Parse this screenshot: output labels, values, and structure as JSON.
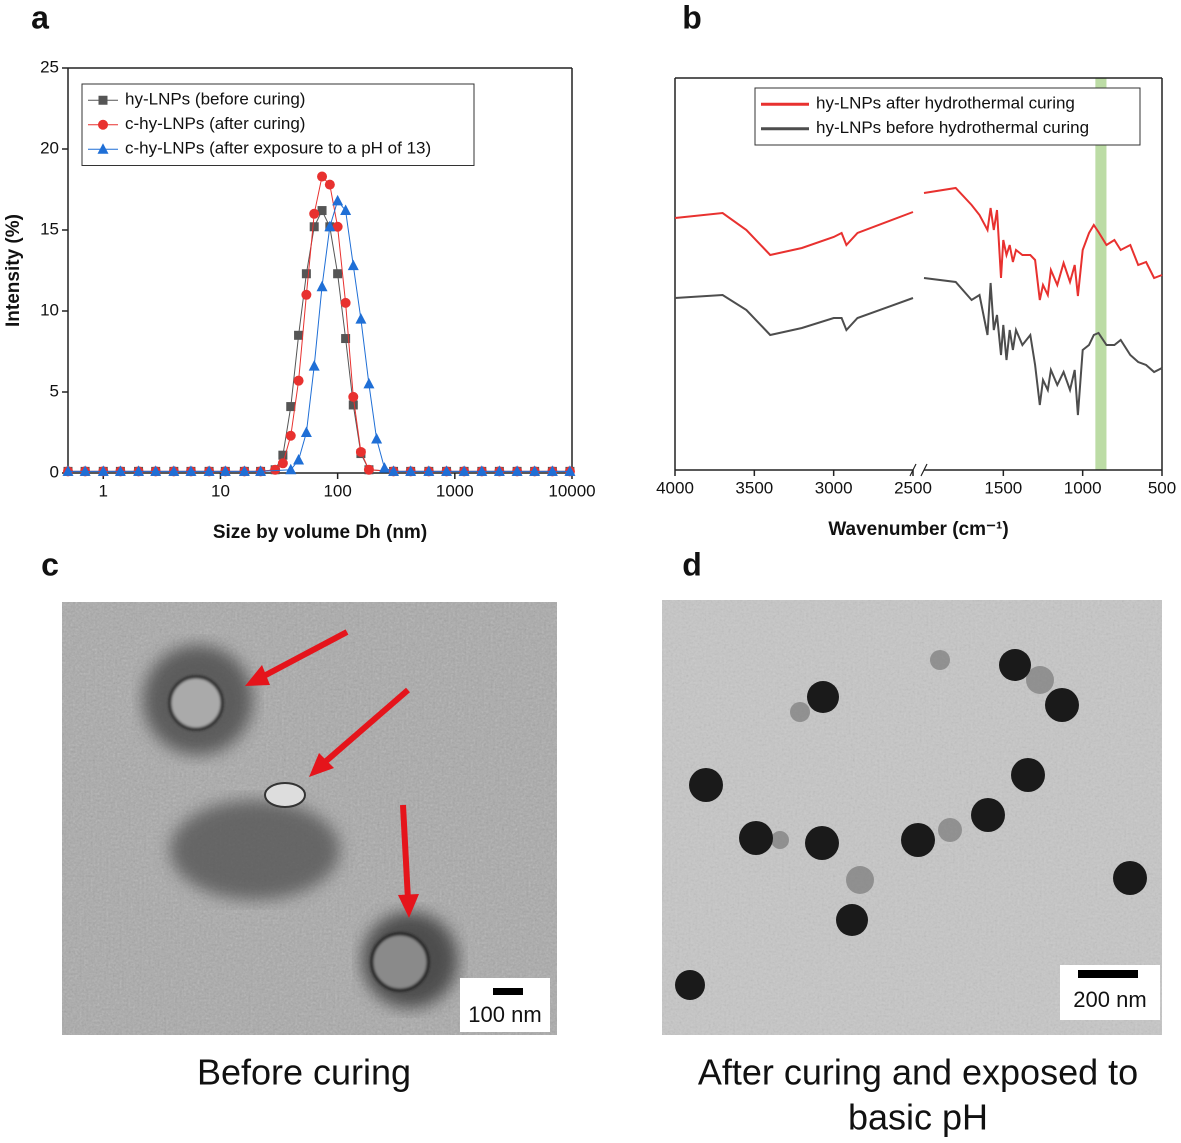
{
  "chart_data": [
    {
      "panel": "a",
      "type": "line",
      "xscale": "log",
      "xlabel": "Size by volume Dh (nm)",
      "ylabel": "Intensity (%)",
      "xlim": [
        0.5,
        10000
      ],
      "xticks": [
        1,
        10,
        100,
        1000,
        10000
      ],
      "ylim": [
        0,
        25
      ],
      "yticks": [
        0,
        5,
        10,
        15,
        20,
        25
      ],
      "legend": "upper left",
      "series": [
        {
          "name": "hy-LNPs (before curing)",
          "color": "#555555",
          "marker": "square",
          "x": [
            0.5,
            0.7,
            1,
            1.4,
            2,
            2.8,
            4,
            5.6,
            8,
            11,
            16,
            22,
            29.3,
            34.1,
            39.8,
            46.4,
            54.1,
            63.1,
            73.6,
            85.8,
            100,
            117,
            136,
            158,
            185,
            300,
            420,
            600,
            850,
            1200,
            1700,
            2400,
            3400,
            4800,
            6800,
            9600
          ],
          "values": [
            0.1,
            0.1,
            0.1,
            0.1,
            0.1,
            0.1,
            0.1,
            0.1,
            0.1,
            0.1,
            0.1,
            0.1,
            0.2,
            1.1,
            4.1,
            8.5,
            12.3,
            15.2,
            16.2,
            15.2,
            12.3,
            8.3,
            4.2,
            1.2,
            0.2,
            0.1,
            0.1,
            0.1,
            0.1,
            0.1,
            0.1,
            0.1,
            0.1,
            0.1,
            0.1,
            0.1
          ]
        },
        {
          "name": "c-hy-LNPs (after curing)",
          "color": "#e8312f",
          "marker": "circle",
          "x": [
            0.5,
            0.7,
            1,
            1.4,
            2,
            2.8,
            4,
            5.6,
            8,
            11,
            16,
            22,
            29.3,
            34.1,
            39.8,
            46.4,
            54.1,
            63.1,
            73.6,
            85.8,
            100,
            117,
            136,
            158,
            185,
            300,
            420,
            600,
            850,
            1200,
            1700,
            2400,
            3400,
            4800,
            6800,
            9600
          ],
          "values": [
            0.1,
            0.1,
            0.1,
            0.1,
            0.1,
            0.1,
            0.1,
            0.1,
            0.1,
            0.1,
            0.1,
            0.1,
            0.2,
            0.6,
            2.3,
            5.7,
            11.0,
            16.0,
            18.3,
            17.8,
            15.2,
            10.5,
            4.7,
            1.3,
            0.2,
            0.1,
            0.1,
            0.1,
            0.1,
            0.1,
            0.1,
            0.1,
            0.1,
            0.1,
            0.1,
            0.1
          ]
        },
        {
          "name": "c-hy-LNPs (after exposure to a pH of 13)",
          "color": "#1f6fd6",
          "marker": "triangle",
          "x": [
            0.5,
            0.7,
            1,
            1.4,
            2,
            2.8,
            4,
            5.6,
            8,
            11,
            16,
            22,
            39.8,
            46.4,
            54.1,
            63.1,
            73.6,
            85.8,
            100,
            117,
            136,
            158,
            185,
            215,
            251,
            300,
            420,
            600,
            850,
            1200,
            1700,
            2400,
            3400,
            4800,
            6800,
            9600
          ],
          "values": [
            0.1,
            0.1,
            0.1,
            0.1,
            0.1,
            0.1,
            0.1,
            0.1,
            0.1,
            0.1,
            0.1,
            0.1,
            0.2,
            0.8,
            2.5,
            6.6,
            11.5,
            15.2,
            16.8,
            16.2,
            12.8,
            9.5,
            5.5,
            2.1,
            0.3,
            0.1,
            0.1,
            0.1,
            0.1,
            0.1,
            0.1,
            0.1,
            0.1,
            0.1,
            0.1,
            0.1
          ]
        }
      ]
    },
    {
      "panel": "b",
      "type": "line",
      "xlabel": "Wavenumber (cm⁻¹)",
      "xlim": [
        4000,
        500
      ],
      "xbreak": [
        2500,
        2000
      ],
      "xticks": [
        4000,
        3500,
        3000,
        2500,
        1500,
        1000,
        500
      ],
      "ylim": [
        0,
        392
      ],
      "highlight": [
        920,
        850
      ],
      "highlight_color": "#bcdca5",
      "legend": "upper right",
      "x": [
        4000,
        3700,
        3550,
        3400,
        3200,
        3000,
        2950,
        2920,
        2850,
        2500,
        2000,
        1800,
        1700,
        1650,
        1600,
        1580,
        1560,
        1540,
        1515,
        1500,
        1480,
        1460,
        1440,
        1420,
        1380,
        1330,
        1300,
        1270,
        1250,
        1220,
        1200,
        1160,
        1120,
        1080,
        1050,
        1030,
        1000,
        960,
        930,
        900,
        850,
        800,
        760,
        700,
        650,
        600,
        550,
        500
      ],
      "series": [
        {
          "name": "hy-LNPs after hydrothermal curing",
          "color": "#e8312f",
          "values": [
            252,
            257,
            240,
            215,
            222,
            233,
            237,
            225,
            237,
            258,
            277,
            282,
            265,
            255,
            240,
            262,
            240,
            260,
            192,
            230,
            215,
            225,
            208,
            220,
            215,
            215,
            210,
            170,
            185,
            175,
            200,
            185,
            207,
            188,
            205,
            174,
            220,
            237,
            245,
            238,
            225,
            230,
            220,
            225,
            205,
            208,
            192,
            195
          ]
        },
        {
          "name": "hy-LNPs before hydrothermal curing",
          "color": "#4d4d4d",
          "values": [
            172,
            175,
            160,
            135,
            142,
            152,
            152,
            140,
            152,
            172,
            192,
            188,
            170,
            175,
            135,
            187,
            140,
            155,
            115,
            145,
            110,
            140,
            120,
            140,
            125,
            135,
            105,
            65,
            90,
            80,
            100,
            85,
            98,
            80,
            100,
            55,
            120,
            125,
            135,
            137,
            125,
            125,
            130,
            115,
            108,
            105,
            98,
            102
          ]
        }
      ]
    }
  ],
  "images": [
    {
      "panel": "c",
      "scale_bar": "100 nm",
      "caption": [
        "Before curing"
      ]
    },
    {
      "panel": "d",
      "scale_bar": "200 nm",
      "caption": [
        "After curing and exposed to",
        "basic pH"
      ]
    }
  ]
}
